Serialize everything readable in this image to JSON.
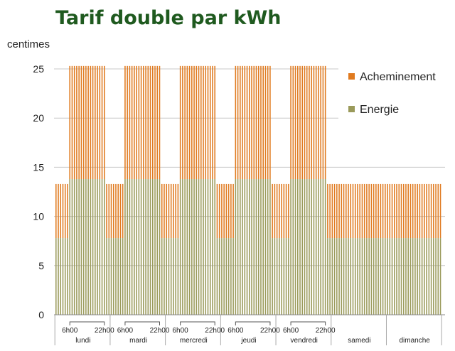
{
  "chart_data": {
    "type": "bar",
    "stacked": true,
    "title": "Tarif double par kWh",
    "ylabel": "centimes",
    "ylim": [
      0,
      26
    ],
    "yticks": [
      0,
      5,
      10,
      15,
      20,
      25
    ],
    "grid": true,
    "legend_position": "right",
    "time_markers": [
      "6h00",
      "22h00"
    ],
    "days": [
      {
        "name": "lundi",
        "tariff": "double"
      },
      {
        "name": "mardi",
        "tariff": "double"
      },
      {
        "name": "mercredi",
        "tariff": "double"
      },
      {
        "name": "jeudi",
        "tariff": "double"
      },
      {
        "name": "vendredi",
        "tariff": "double"
      },
      {
        "name": "samedi",
        "tariff": "low"
      },
      {
        "name": "dimanche",
        "tariff": "low"
      }
    ],
    "rates": {
      "high": {
        "Energie": 13.8,
        "Acheminement": 11.5
      },
      "low": {
        "Energie": 7.8,
        "Acheminement": 5.5
      }
    },
    "series": [
      {
        "name": "Acheminement",
        "color": "#e07a1f"
      },
      {
        "name": "Energie",
        "color": "#9a9a5a"
      }
    ]
  }
}
